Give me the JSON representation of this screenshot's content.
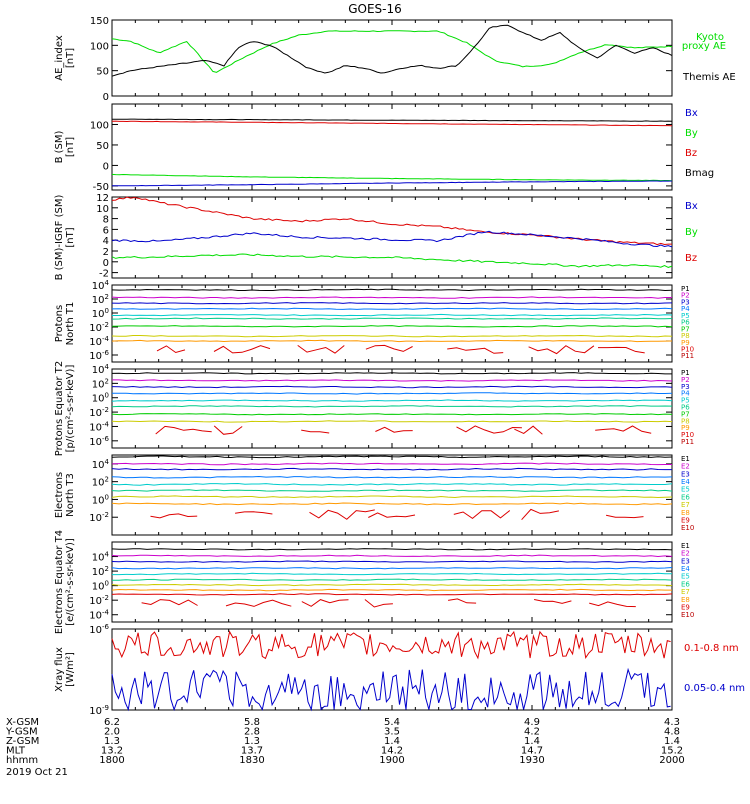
{
  "title": "GOES-16",
  "x_axis": {
    "rows": [
      {
        "label": "X-GSM",
        "values": [
          "6.2",
          "5.8",
          "5.4",
          "4.9",
          "4.3"
        ]
      },
      {
        "label": "Y-GSM",
        "values": [
          "2.0",
          "2.8",
          "3.5",
          "4.2",
          "4.8"
        ]
      },
      {
        "label": "Z-GSM",
        "values": [
          "1.3",
          "1.3",
          "1.4",
          "1.4",
          "1.4"
        ]
      },
      {
        "label": "MLT",
        "values": [
          "13.2",
          "13.7",
          "14.2",
          "14.7",
          "15.2"
        ]
      },
      {
        "label": "hhmm",
        "values": [
          "1800",
          "1830",
          "1900",
          "1930",
          "2000"
        ]
      }
    ],
    "date": "2019 Oct 21",
    "range_minutes": [
      0,
      120
    ]
  },
  "colors": {
    "black": "#000000",
    "blue": "#0000cc",
    "green": "#00dd00",
    "red": "#dd0000",
    "p": [
      "#000000",
      "#cc00cc",
      "#0000cc",
      "#0077ff",
      "#00cccc",
      "#00cc88",
      "#00cc00",
      "#cccc00",
      "#ff9900",
      "#dd0000",
      "#bb0000"
    ],
    "e": [
      "#000000",
      "#cc00cc",
      "#0000cc",
      "#0077ff",
      "#00cccc",
      "#00cc88",
      "#cccc00",
      "#ff9900",
      "#dd0000",
      "#bb0000"
    ]
  },
  "chart_data": [
    {
      "type": "line",
      "id": "ae",
      "ylabel": "AE_index [nT]",
      "ylim": [
        0,
        150
      ],
      "yticks": [
        "0",
        "50",
        "100",
        "150"
      ],
      "legend": [
        {
          "label": "Kyoto proxy AE",
          "color": "#00dd00"
        },
        {
          "label": "Themis AE",
          "color": "#000000"
        }
      ],
      "series": [
        {
          "name": "Kyoto proxy AE",
          "color": "#00dd00",
          "x": [
            0,
            4,
            10,
            16,
            22,
            28,
            34,
            40,
            46,
            52,
            58,
            64,
            70,
            76,
            82,
            88,
            94,
            100,
            106,
            112,
            120
          ],
          "values": [
            113,
            108,
            85,
            108,
            45,
            75,
            102,
            120,
            128,
            128,
            128,
            128,
            128,
            105,
            70,
            58,
            62,
            85,
            102,
            95,
            98
          ]
        },
        {
          "name": "Themis AE",
          "color": "#000000",
          "x": [
            0,
            4,
            10,
            16,
            20,
            24,
            27,
            30,
            34,
            38,
            42,
            46,
            50,
            54,
            58,
            62,
            66,
            70,
            74,
            78,
            81,
            85,
            88,
            92,
            96,
            100,
            104,
            108,
            112,
            116,
            120
          ],
          "values": [
            40,
            50,
            58,
            65,
            70,
            60,
            95,
            108,
            100,
            78,
            55,
            45,
            60,
            55,
            45,
            55,
            60,
            55,
            60,
            100,
            135,
            140,
            125,
            110,
            125,
            95,
            75,
            100,
            85,
            95,
            80
          ]
        }
      ]
    },
    {
      "type": "line",
      "id": "bsm",
      "ylabel": "B (SM) [nT]",
      "ylim": [
        -60,
        150
      ],
      "yticks": [
        "-50",
        "0",
        "50",
        "100"
      ],
      "legend": [
        {
          "label": "Bx",
          "color": "#0000cc"
        },
        {
          "label": "By",
          "color": "#00dd00"
        },
        {
          "label": "Bz",
          "color": "#dd0000"
        },
        {
          "label": "Bmag",
          "color": "#000000"
        }
      ],
      "series": [
        {
          "name": "Bmag",
          "color": "#000000",
          "x": [
            0,
            120
          ],
          "values": [
            113,
            108
          ]
        },
        {
          "name": "Bz",
          "color": "#dd0000",
          "x": [
            0,
            120
          ],
          "values": [
            108,
            97
          ]
        },
        {
          "name": "By",
          "color": "#00dd00",
          "x": [
            0,
            30,
            60,
            90,
            120
          ],
          "values": [
            -22,
            -28,
            -32,
            -35,
            -37
          ]
        },
        {
          "name": "Bx",
          "color": "#0000cc",
          "x": [
            0,
            30,
            60,
            90,
            120
          ],
          "values": [
            -50,
            -47,
            -43,
            -40,
            -38
          ]
        }
      ]
    },
    {
      "type": "line",
      "id": "bigrf",
      "ylabel": "B (SM)-IGRF (SM) [nT]",
      "ylim": [
        -3,
        12
      ],
      "yticks": [
        "-2",
        "0",
        "2",
        "4",
        "6",
        "8",
        "10",
        "12"
      ],
      "legend": [
        {
          "label": "Bx",
          "color": "#0000cc"
        },
        {
          "label": "By",
          "color": "#00dd00"
        },
        {
          "label": "Bz",
          "color": "#dd0000"
        }
      ],
      "series": [
        {
          "name": "Bz",
          "color": "#dd0000",
          "x": [
            0,
            5,
            10,
            20,
            30,
            40,
            50,
            60,
            70,
            80,
            90,
            100,
            110,
            120
          ],
          "values": [
            11.5,
            12,
            11,
            9.5,
            8,
            7.5,
            8,
            7,
            6.5,
            5.5,
            5,
            4.2,
            3.6,
            3.2
          ]
        },
        {
          "name": "Bx",
          "color": "#0000cc",
          "x": [
            0,
            10,
            20,
            30,
            40,
            50,
            60,
            70,
            80,
            90,
            100,
            110,
            120
          ],
          "values": [
            4,
            3.8,
            4.5,
            5.3,
            4.6,
            4.4,
            4.1,
            3.9,
            5.6,
            5,
            4.3,
            3.4,
            2.8
          ]
        },
        {
          "name": "By",
          "color": "#00dd00",
          "x": [
            0,
            10,
            20,
            30,
            40,
            50,
            60,
            70,
            80,
            90,
            100,
            110,
            120
          ],
          "values": [
            0.8,
            0.9,
            1.2,
            1.3,
            1.0,
            0.9,
            0.8,
            0.4,
            0.0,
            -0.3,
            -0.8,
            -0.6,
            -0.9
          ]
        }
      ]
    },
    {
      "type": "line",
      "id": "pt1",
      "log": true,
      "ylabel": "Protons North T1",
      "ylim": [
        -7,
        4
      ],
      "yticks": [
        "10^4",
        "10^2",
        "10^0",
        "10^-2",
        "10^-4",
        "10^-6"
      ],
      "legend": [
        "P1",
        "P2",
        "P3",
        "P4",
        "P5",
        "P6",
        "P7",
        "P8",
        "P9",
        "P10",
        "P11"
      ],
      "levels": [
        3.3,
        2.2,
        1.4,
        0.6,
        -0.3,
        -0.8,
        -1.9,
        -3.3,
        -4.0
      ]
    },
    {
      "type": "line",
      "id": "pt2",
      "log": true,
      "ylabel": "Protons Equator T2 [p/(cm²-s-sr-keV)]",
      "ylim": [
        -7,
        4
      ],
      "yticks": [
        "10^4",
        "10^2",
        "10^0",
        "10^-2",
        "10^-4",
        "10^-6"
      ],
      "legend": [
        "P1",
        "P2",
        "P3",
        "P4",
        "P5",
        "P6",
        "P7",
        "P8",
        "P9",
        "P10",
        "P11"
      ],
      "levels": [
        3.4,
        2.4,
        1.5,
        0.6,
        -0.4,
        -1.2,
        -2.3,
        -3.3
      ]
    },
    {
      "type": "line",
      "id": "et3",
      "log": true,
      "ylabel": "Electrons North T3",
      "ylim": [
        -4,
        5
      ],
      "yticks": [
        "10^4",
        "10^2",
        "10^0",
        "10^-2"
      ],
      "legend": [
        "E1",
        "E2",
        "E3",
        "E4",
        "E5",
        "E6",
        "E7",
        "E8",
        "E9",
        "E10"
      ],
      "levels": [
        4.8,
        4.0,
        3.4,
        2.5,
        1.7,
        1.0,
        0.3,
        -0.5
      ]
    },
    {
      "type": "line",
      "id": "et4",
      "log": true,
      "ylabel": "Electrons Equator T4 [e/(cm²-s-sr-keV)]",
      "ylim": [
        -5,
        6
      ],
      "yticks": [
        "10^4",
        "10^2",
        "10^0",
        "10^-2",
        "10^-4"
      ],
      "legend": [
        "E1",
        "E2",
        "E3",
        "E4",
        "E5",
        "E6",
        "E7",
        "E8",
        "E9",
        "E10"
      ],
      "levels": [
        5.0,
        4.1,
        3.3,
        2.4,
        1.6,
        0.8,
        0.1,
        -0.6,
        -1.2
      ]
    },
    {
      "type": "line",
      "id": "xray",
      "log": true,
      "ylabel": "Xray flux [W/m²]",
      "ylim": [
        -9,
        -6
      ],
      "yticks": [
        "10^-6",
        "10^-9"
      ],
      "legend": [
        {
          "label": "0.1-0.8 nm",
          "color": "#dd0000"
        },
        {
          "label": "0.05-0.4 nm",
          "color": "#0000cc"
        }
      ],
      "series": [
        {
          "name": "0.1-0.8 nm",
          "color": "#dd0000",
          "level": -6.8
        },
        {
          "name": "0.05-0.4 nm",
          "color": "#0000cc",
          "level": -8.2
        }
      ]
    }
  ]
}
